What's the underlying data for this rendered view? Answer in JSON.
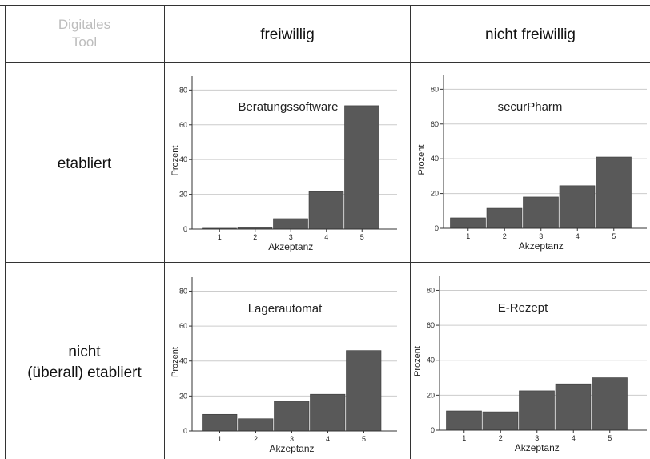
{
  "table": {
    "corner_line1": "Digitales",
    "corner_line2": "Tool",
    "col1": "freiwillig",
    "col2": "nicht freiwillig",
    "row1": "etabliert",
    "row2_line1": "nicht",
    "row2_line2": "(überall) etabliert"
  },
  "colors": {
    "bar": "#595959",
    "grid": "#cccccc",
    "axis": "#333333",
    "corner_text": "#bdbdbd"
  },
  "chart_data": [
    {
      "type": "bar",
      "title": "Beratungssoftware",
      "xlabel": "Akzeptanz",
      "ylabel": "Prozent",
      "categories": [
        "1",
        "2",
        "3",
        "4",
        "5"
      ],
      "values": [
        0.5,
        1,
        6,
        21.5,
        71
      ],
      "ylim": [
        0,
        88
      ],
      "yticks": [
        "0",
        "20",
        "40",
        "60",
        "80"
      ],
      "grid": true
    },
    {
      "type": "bar",
      "title": "securPharm",
      "xlabel": "Akzeptanz",
      "ylabel": "Prozent",
      "categories": [
        "1",
        "2",
        "3",
        "4",
        "5"
      ],
      "values": [
        6,
        11.5,
        18,
        24.5,
        41
      ],
      "ylim": [
        0,
        88
      ],
      "yticks": [
        "0",
        "20",
        "40",
        "60",
        "80"
      ],
      "grid": true
    },
    {
      "type": "bar",
      "title": "Lagerautomat",
      "xlabel": "Akzeptanz",
      "ylabel": "Prozent",
      "categories": [
        "1",
        "2",
        "3",
        "4",
        "5"
      ],
      "values": [
        9.5,
        7,
        17,
        21,
        46
      ],
      "ylim": [
        0,
        88
      ],
      "yticks": [
        "0",
        "20",
        "40",
        "60",
        "80"
      ],
      "grid": true
    },
    {
      "type": "bar",
      "title": "E-Rezept",
      "xlabel": "Akzeptanz",
      "ylabel": "Prozent",
      "categories": [
        "1",
        "2",
        "3",
        "4",
        "5"
      ],
      "values": [
        11,
        10.5,
        22.5,
        26.5,
        30
      ],
      "ylim": [
        0,
        88
      ],
      "yticks": [
        "0",
        "20",
        "40",
        "60",
        "80"
      ],
      "grid": true
    }
  ]
}
